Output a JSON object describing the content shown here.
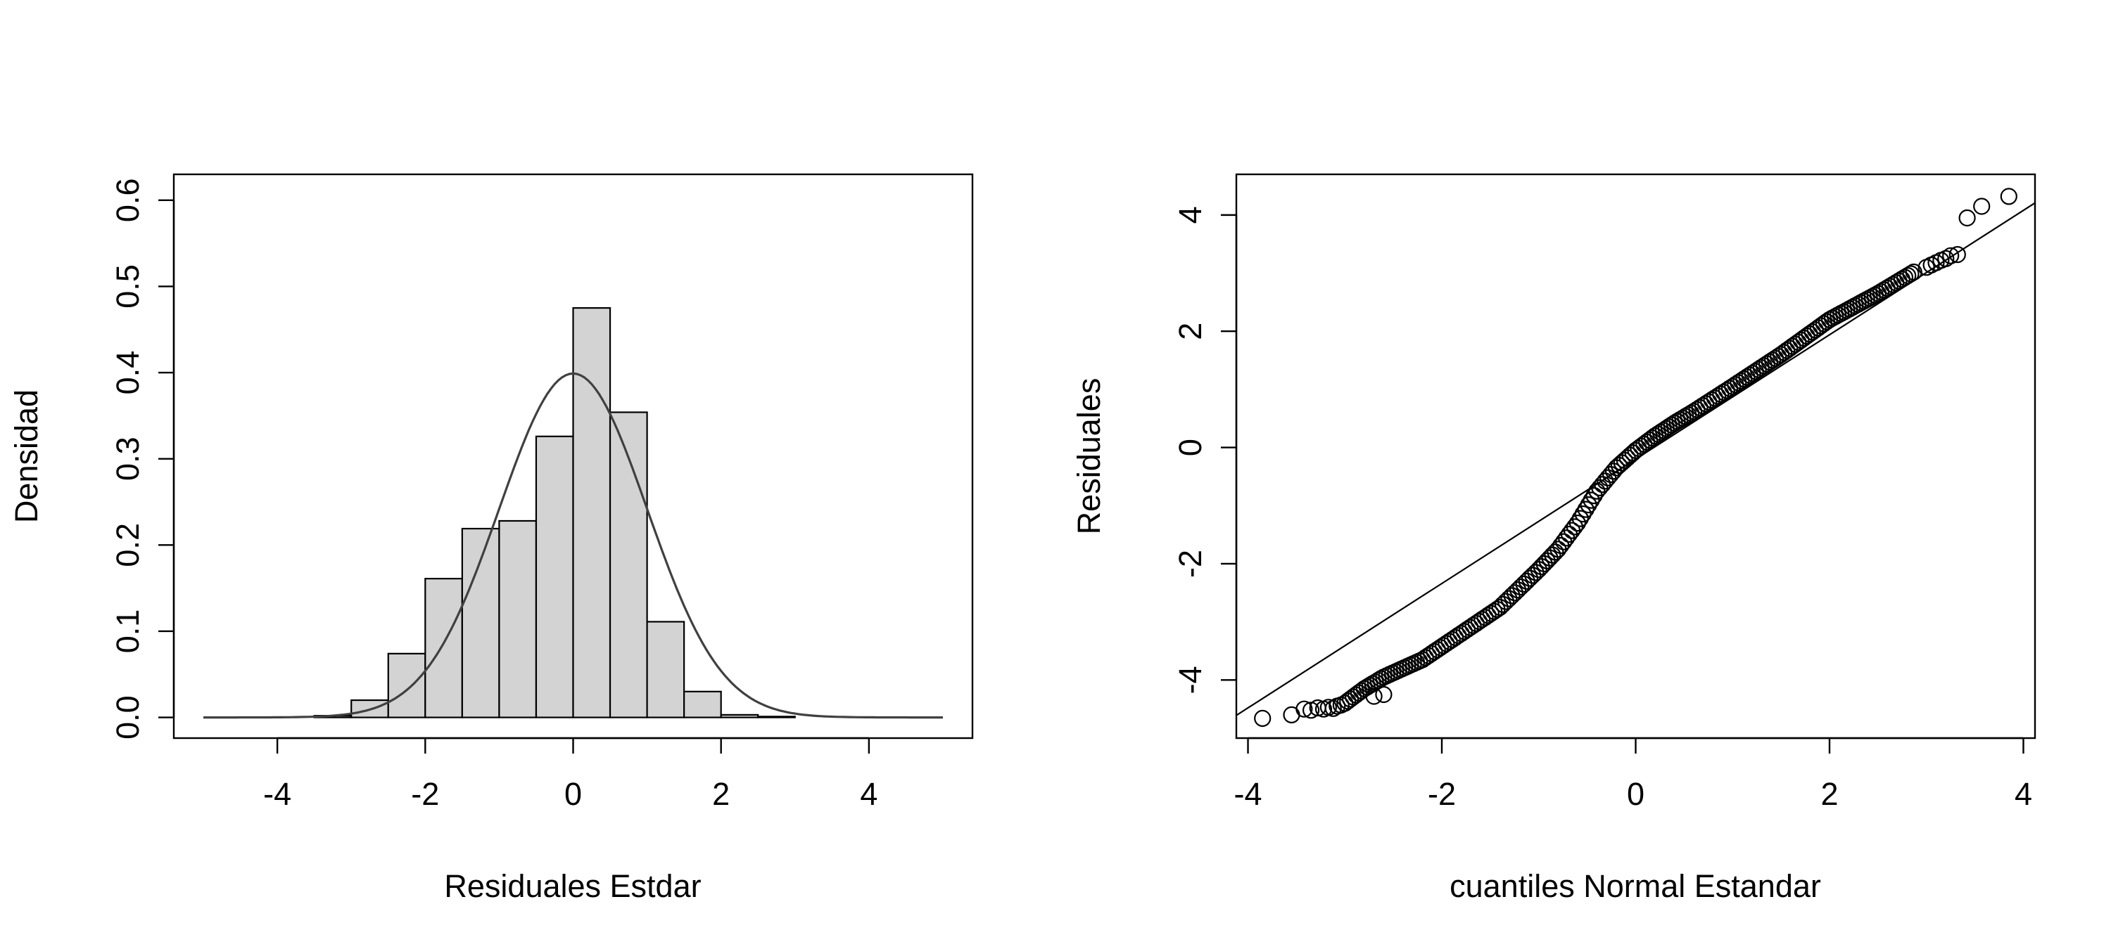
{
  "colors": {
    "background": "#ffffff",
    "axis": "#000000",
    "bar_fill": "#d3d3d3",
    "bar_stroke": "#000000",
    "density_curve": "#404040",
    "qq_points": "#000000",
    "qq_line": "#000000"
  },
  "chart_data": [
    {
      "type": "histogram",
      "title": "",
      "xlabel": "Residuales Estdar",
      "ylabel": "Densidad",
      "xlim": [
        -5.4,
        5.4
      ],
      "ylim": [
        -0.024,
        0.63
      ],
      "xticks": [
        -4,
        -2,
        0,
        2,
        4
      ],
      "xtick_labels": [
        "-4",
        "-2",
        "0",
        "2",
        "4"
      ],
      "yticks": [
        0.0,
        0.1,
        0.2,
        0.3,
        0.4,
        0.5,
        0.6
      ],
      "ytick_labels": [
        "0.0",
        "0.1",
        "0.2",
        "0.3",
        "0.4",
        "0.5",
        "0.6"
      ],
      "bins": [
        {
          "x0": -3.5,
          "x1": -3.0,
          "density": 0.002
        },
        {
          "x0": -3.0,
          "x1": -2.5,
          "density": 0.02
        },
        {
          "x0": -2.5,
          "x1": -2.0,
          "density": 0.074
        },
        {
          "x0": -2.0,
          "x1": -1.5,
          "density": 0.161
        },
        {
          "x0": -1.5,
          "x1": -1.0,
          "density": 0.219
        },
        {
          "x0": -1.0,
          "x1": -0.5,
          "density": 0.228
        },
        {
          "x0": -0.5,
          "x1": 0.0,
          "density": 0.326
        },
        {
          "x0": 0.0,
          "x1": 0.5,
          "density": 0.475
        },
        {
          "x0": 0.5,
          "x1": 1.0,
          "density": 0.354
        },
        {
          "x0": 1.0,
          "x1": 1.5,
          "density": 0.111
        },
        {
          "x0": 1.5,
          "x1": 2.0,
          "density": 0.03
        },
        {
          "x0": 2.0,
          "x1": 2.5,
          "density": 0.003
        },
        {
          "x0": 2.5,
          "x1": 3.0,
          "density": 0.001
        }
      ],
      "curve": {
        "name": "N(0,1) density",
        "mean": 0,
        "sd": 1,
        "x_range": [
          -5,
          5
        ]
      },
      "grid": false,
      "legend": "none"
    },
    {
      "type": "scatter",
      "subtype": "qq-plot",
      "title": "",
      "xlabel": "cuantiles Normal Estandar",
      "ylabel": "Residuales",
      "xlim": [
        -4.12,
        4.12
      ],
      "ylim": [
        -5.0,
        4.7
      ],
      "xticks": [
        -4,
        -2,
        0,
        2,
        4
      ],
      "xtick_labels": [
        "-4",
        "-2",
        "0",
        "2",
        "4"
      ],
      "yticks": [
        -4,
        -2,
        0,
        2,
        4
      ],
      "ytick_labels": [
        "-4",
        "-2",
        "0",
        "2",
        "4"
      ],
      "ref_line": {
        "intercept": -0.2,
        "slope": 1.07
      },
      "curve_pts": [
        [
          -3.0,
          -4.4
        ],
        [
          -2.8,
          -4.15
        ],
        [
          -2.6,
          -3.95
        ],
        [
          -2.2,
          -3.65
        ],
        [
          -1.8,
          -3.2
        ],
        [
          -1.4,
          -2.75
        ],
        [
          -1.0,
          -2.1
        ],
        [
          -0.8,
          -1.75
        ],
        [
          -0.6,
          -1.3
        ],
        [
          -0.4,
          -0.75
        ],
        [
          -0.2,
          -0.35
        ],
        [
          0.0,
          -0.05
        ],
        [
          0.2,
          0.2
        ],
        [
          0.4,
          0.42
        ],
        [
          0.6,
          0.62
        ],
        [
          1.0,
          1.05
        ],
        [
          1.5,
          1.6
        ],
        [
          2.0,
          2.2
        ],
        [
          2.5,
          2.65
        ],
        [
          2.9,
          3.05
        ]
      ],
      "outliers": [
        [
          -3.85,
          -4.66
        ],
        [
          -3.55,
          -4.6
        ],
        [
          -3.42,
          -4.5
        ],
        [
          -3.35,
          -4.52
        ],
        [
          -3.28,
          -4.48
        ],
        [
          -3.22,
          -4.5
        ],
        [
          -3.17,
          -4.47
        ],
        [
          -3.12,
          -4.49
        ],
        [
          -3.08,
          -4.45
        ],
        [
          -3.04,
          -4.43
        ],
        [
          -2.7,
          -4.28
        ],
        [
          -2.6,
          -4.25
        ],
        [
          3.0,
          3.1
        ],
        [
          3.05,
          3.14
        ],
        [
          3.1,
          3.18
        ],
        [
          3.15,
          3.22
        ],
        [
          3.2,
          3.25
        ],
        [
          3.25,
          3.3
        ],
        [
          3.32,
          3.32
        ],
        [
          3.42,
          3.95
        ],
        [
          3.57,
          4.15
        ],
        [
          3.85,
          4.32
        ]
      ],
      "grid": false,
      "legend": "none"
    }
  ]
}
